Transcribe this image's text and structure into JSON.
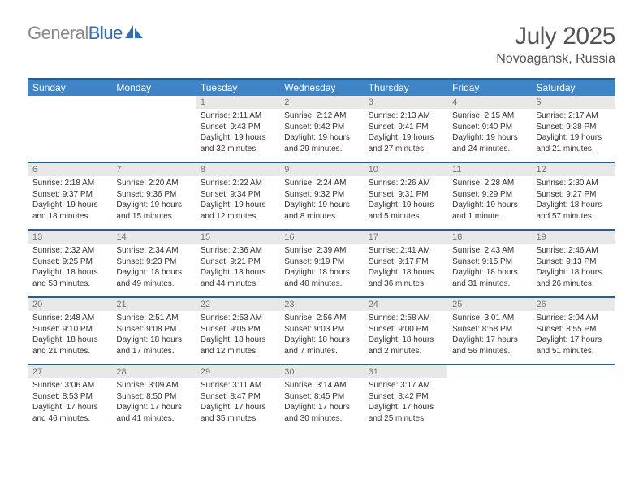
{
  "logo": {
    "text_gray": "General",
    "text_blue": "Blue"
  },
  "title": "July 2025",
  "subtitle": "Novoagansk, Russia",
  "colors": {
    "header_bg": "#3d85c6",
    "header_border": "#2a5d8a",
    "daynum_bg": "#e8e8e8",
    "text_muted": "#777777",
    "text_body": "#333333",
    "title_color": "#555555",
    "logo_gray": "#8a8a8a",
    "logo_blue": "#2f6fb3"
  },
  "day_headers": [
    "Sunday",
    "Monday",
    "Tuesday",
    "Wednesday",
    "Thursday",
    "Friday",
    "Saturday"
  ],
  "weeks": [
    [
      null,
      null,
      {
        "n": "1",
        "sr": "2:11 AM",
        "ss": "9:43 PM",
        "dl": "19 hours and 32 minutes."
      },
      {
        "n": "2",
        "sr": "2:12 AM",
        "ss": "9:42 PM",
        "dl": "19 hours and 29 minutes."
      },
      {
        "n": "3",
        "sr": "2:13 AM",
        "ss": "9:41 PM",
        "dl": "19 hours and 27 minutes."
      },
      {
        "n": "4",
        "sr": "2:15 AM",
        "ss": "9:40 PM",
        "dl": "19 hours and 24 minutes."
      },
      {
        "n": "5",
        "sr": "2:17 AM",
        "ss": "9:38 PM",
        "dl": "19 hours and 21 minutes."
      }
    ],
    [
      {
        "n": "6",
        "sr": "2:18 AM",
        "ss": "9:37 PM",
        "dl": "19 hours and 18 minutes."
      },
      {
        "n": "7",
        "sr": "2:20 AM",
        "ss": "9:36 PM",
        "dl": "19 hours and 15 minutes."
      },
      {
        "n": "8",
        "sr": "2:22 AM",
        "ss": "9:34 PM",
        "dl": "19 hours and 12 minutes."
      },
      {
        "n": "9",
        "sr": "2:24 AM",
        "ss": "9:32 PM",
        "dl": "19 hours and 8 minutes."
      },
      {
        "n": "10",
        "sr": "2:26 AM",
        "ss": "9:31 PM",
        "dl": "19 hours and 5 minutes."
      },
      {
        "n": "11",
        "sr": "2:28 AM",
        "ss": "9:29 PM",
        "dl": "19 hours and 1 minute."
      },
      {
        "n": "12",
        "sr": "2:30 AM",
        "ss": "9:27 PM",
        "dl": "18 hours and 57 minutes."
      }
    ],
    [
      {
        "n": "13",
        "sr": "2:32 AM",
        "ss": "9:25 PM",
        "dl": "18 hours and 53 minutes."
      },
      {
        "n": "14",
        "sr": "2:34 AM",
        "ss": "9:23 PM",
        "dl": "18 hours and 49 minutes."
      },
      {
        "n": "15",
        "sr": "2:36 AM",
        "ss": "9:21 PM",
        "dl": "18 hours and 44 minutes."
      },
      {
        "n": "16",
        "sr": "2:39 AM",
        "ss": "9:19 PM",
        "dl": "18 hours and 40 minutes."
      },
      {
        "n": "17",
        "sr": "2:41 AM",
        "ss": "9:17 PM",
        "dl": "18 hours and 36 minutes."
      },
      {
        "n": "18",
        "sr": "2:43 AM",
        "ss": "9:15 PM",
        "dl": "18 hours and 31 minutes."
      },
      {
        "n": "19",
        "sr": "2:46 AM",
        "ss": "9:13 PM",
        "dl": "18 hours and 26 minutes."
      }
    ],
    [
      {
        "n": "20",
        "sr": "2:48 AM",
        "ss": "9:10 PM",
        "dl": "18 hours and 21 minutes."
      },
      {
        "n": "21",
        "sr": "2:51 AM",
        "ss": "9:08 PM",
        "dl": "18 hours and 17 minutes."
      },
      {
        "n": "22",
        "sr": "2:53 AM",
        "ss": "9:05 PM",
        "dl": "18 hours and 12 minutes."
      },
      {
        "n": "23",
        "sr": "2:56 AM",
        "ss": "9:03 PM",
        "dl": "18 hours and 7 minutes."
      },
      {
        "n": "24",
        "sr": "2:58 AM",
        "ss": "9:00 PM",
        "dl": "18 hours and 2 minutes."
      },
      {
        "n": "25",
        "sr": "3:01 AM",
        "ss": "8:58 PM",
        "dl": "17 hours and 56 minutes."
      },
      {
        "n": "26",
        "sr": "3:04 AM",
        "ss": "8:55 PM",
        "dl": "17 hours and 51 minutes."
      }
    ],
    [
      {
        "n": "27",
        "sr": "3:06 AM",
        "ss": "8:53 PM",
        "dl": "17 hours and 46 minutes."
      },
      {
        "n": "28",
        "sr": "3:09 AM",
        "ss": "8:50 PM",
        "dl": "17 hours and 41 minutes."
      },
      {
        "n": "29",
        "sr": "3:11 AM",
        "ss": "8:47 PM",
        "dl": "17 hours and 35 minutes."
      },
      {
        "n": "30",
        "sr": "3:14 AM",
        "ss": "8:45 PM",
        "dl": "17 hours and 30 minutes."
      },
      {
        "n": "31",
        "sr": "3:17 AM",
        "ss": "8:42 PM",
        "dl": "17 hours and 25 minutes."
      },
      null,
      null
    ]
  ],
  "labels": {
    "sunrise": "Sunrise: ",
    "sunset": "Sunset: ",
    "daylight": "Daylight: "
  }
}
